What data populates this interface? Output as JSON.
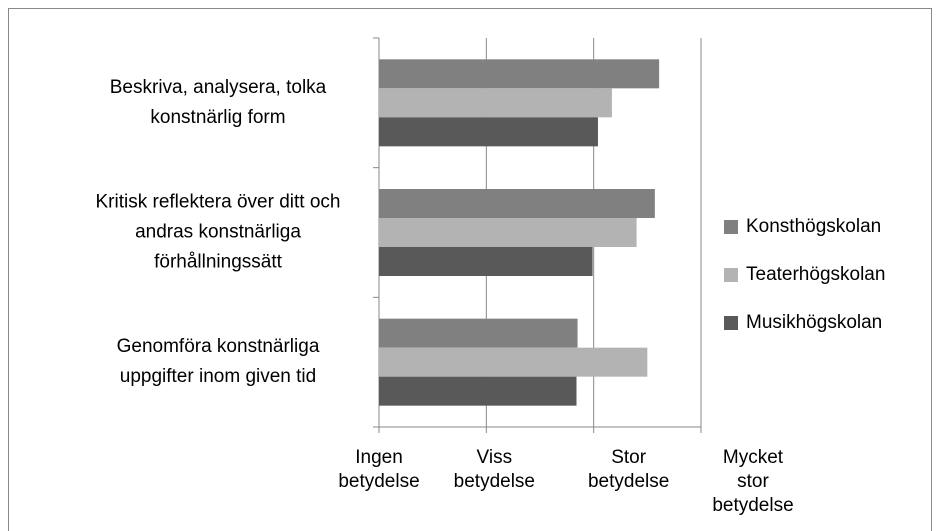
{
  "chart_data": {
    "type": "bar",
    "orientation": "horizontal",
    "categories": [
      "Beskriva, analysera, tolka\nkonstnärlig form",
      "Kritisk reflektera över ditt och\nandras konstnärliga\nförhållningssätt",
      "Genomföra konstnärliga\nuppgifter inom given tid"
    ],
    "series": [
      {
        "name": "Konsthögskolan",
        "color": "#808080",
        "values": [
          3.61,
          3.57,
          2.85
        ]
      },
      {
        "name": "Teaterhögskolan",
        "color": "#b3b3b3",
        "values": [
          3.17,
          3.4,
          3.5
        ]
      },
      {
        "name": "Musikhögskolan",
        "color": "#595959",
        "values": [
          3.04,
          2.99,
          2.84
        ]
      }
    ],
    "xlim": [
      1,
      4
    ],
    "xticks": [
      {
        "value": 1,
        "label": "Ingen\nbetydelse"
      },
      {
        "value": 2,
        "label": "Viss\nbetydelse"
      },
      {
        "value": 3,
        "label": "Stor\nbetydelse"
      },
      {
        "value": 4,
        "label": "Mycket\nstor\nbetydelse"
      }
    ],
    "grid": true,
    "legend": "right"
  }
}
